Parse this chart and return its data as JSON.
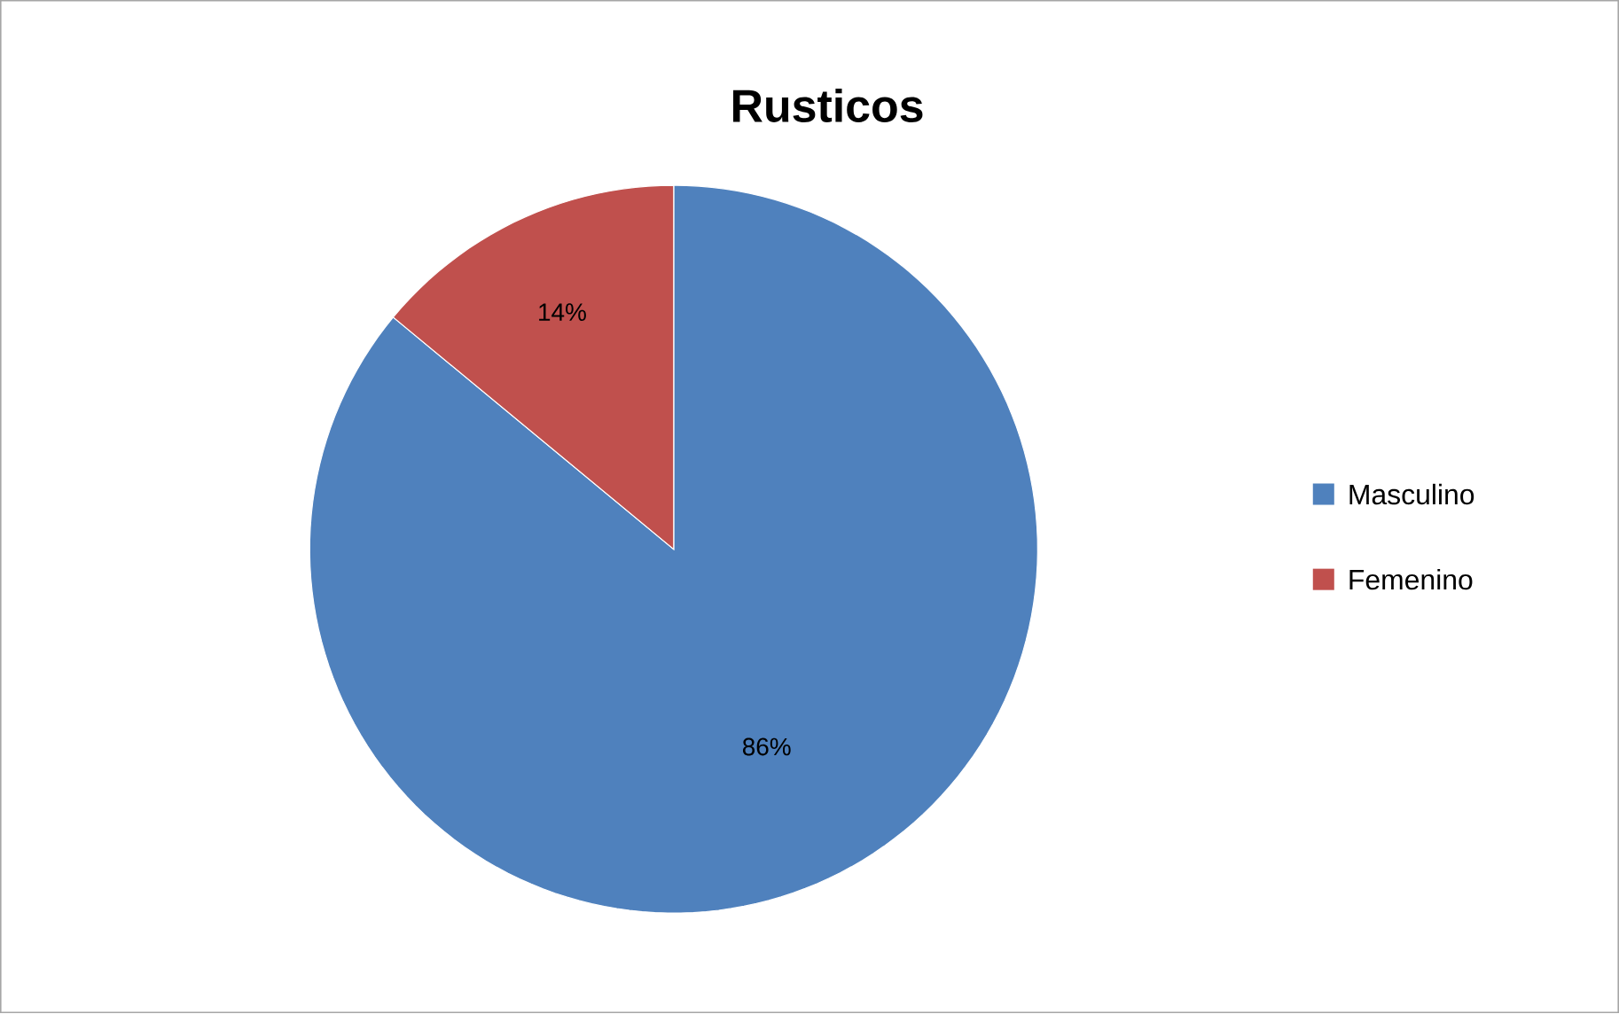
{
  "chart_data": {
    "type": "pie",
    "title": "Rusticos",
    "categories": [
      "Masculino",
      "Femenino"
    ],
    "values": [
      86,
      14
    ],
    "colors": [
      "#4f81bd",
      "#c0504d"
    ],
    "value_labels": [
      "86%",
      "14%"
    ],
    "legend": "right"
  }
}
